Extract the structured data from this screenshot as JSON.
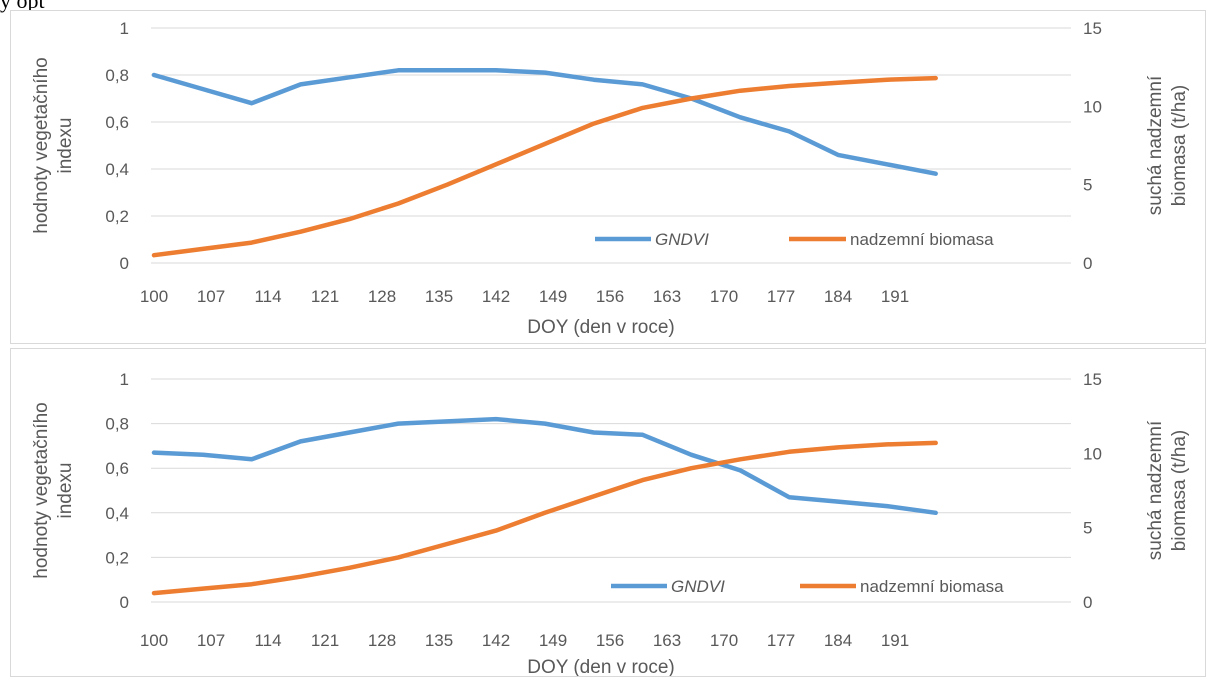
{
  "top_text": "y opt",
  "colors": {
    "gndvi": "#5b9bd5",
    "biomass": "#ed7d31",
    "grid": "#d9d9d9",
    "text": "#595959"
  },
  "chart_data": [
    {
      "type": "line",
      "x_ticks": [
        100,
        107,
        114,
        121,
        128,
        135,
        142,
        149,
        156,
        163,
        170,
        177,
        184,
        191
      ],
      "xlabel": "DOY (den v roce)",
      "ylabel_left": [
        "hodnoty vegetačního",
        "indexu"
      ],
      "ylabel_right": [
        "suchá nadzemní",
        "biomasa (t/ha)"
      ],
      "y_left_ticks": [
        "0",
        "0,2",
        "0,4",
        "0,6",
        "0,8",
        "1"
      ],
      "y_right_ticks": [
        "0",
        "5",
        "10",
        "15"
      ],
      "ylim_left": [
        0,
        1
      ],
      "ylim_right": [
        0,
        15
      ],
      "grid": true,
      "legend_position": "bottom-right inside plot",
      "series": [
        {
          "name": "GNDVI",
          "axis": "left",
          "italic": true,
          "x": [
            100,
            106,
            112,
            118,
            124,
            130,
            136,
            142,
            148,
            154,
            160,
            166,
            172,
            178,
            184,
            190,
            196
          ],
          "values": [
            0.8,
            0.74,
            0.68,
            0.76,
            0.79,
            0.82,
            0.82,
            0.82,
            0.81,
            0.78,
            0.76,
            0.7,
            0.62,
            0.56,
            0.46,
            0.42,
            0.38
          ]
        },
        {
          "name": "nadzemní biomasa",
          "axis": "right",
          "italic": false,
          "x": [
            100,
            106,
            112,
            118,
            124,
            130,
            136,
            142,
            148,
            154,
            160,
            166,
            172,
            178,
            184,
            190,
            196
          ],
          "values": [
            0.5,
            0.9,
            1.3,
            2.0,
            2.8,
            3.8,
            5.0,
            6.3,
            7.6,
            8.9,
            9.9,
            10.5,
            11.0,
            11.3,
            11.5,
            11.7,
            11.8
          ]
        }
      ]
    },
    {
      "type": "line",
      "x_ticks": [
        100,
        107,
        114,
        121,
        128,
        135,
        142,
        149,
        156,
        163,
        170,
        177,
        184,
        191
      ],
      "xlabel": "DOY (den v roce)",
      "ylabel_left": [
        "hodnoty vegetačního",
        "indexu"
      ],
      "ylabel_right": [
        "suchá nadzemní",
        "biomasa (t/ha)"
      ],
      "y_left_ticks": [
        "0",
        "0,2",
        "0,4",
        "0,6",
        "0,8",
        "1"
      ],
      "y_right_ticks": [
        "0",
        "5",
        "10",
        "15"
      ],
      "ylim_left": [
        0,
        1
      ],
      "ylim_right": [
        0,
        15
      ],
      "grid": true,
      "legend_position": "bottom-right inside plot",
      "series": [
        {
          "name": "GNDVI",
          "axis": "left",
          "italic": true,
          "x": [
            100,
            106,
            112,
            118,
            124,
            130,
            136,
            142,
            148,
            154,
            160,
            166,
            172,
            178,
            184,
            190,
            196
          ],
          "values": [
            0.67,
            0.66,
            0.64,
            0.72,
            0.76,
            0.8,
            0.81,
            0.82,
            0.8,
            0.76,
            0.75,
            0.66,
            0.59,
            0.47,
            0.45,
            0.43,
            0.4
          ]
        },
        {
          "name": "nadzemní biomasa",
          "axis": "right",
          "italic": false,
          "x": [
            100,
            106,
            112,
            118,
            124,
            130,
            136,
            142,
            148,
            154,
            160,
            166,
            172,
            178,
            184,
            190,
            196
          ],
          "values": [
            0.6,
            0.9,
            1.2,
            1.7,
            2.3,
            3.0,
            3.9,
            4.8,
            6.0,
            7.1,
            8.2,
            9.0,
            9.6,
            10.1,
            10.4,
            10.6,
            10.7
          ]
        }
      ]
    }
  ]
}
